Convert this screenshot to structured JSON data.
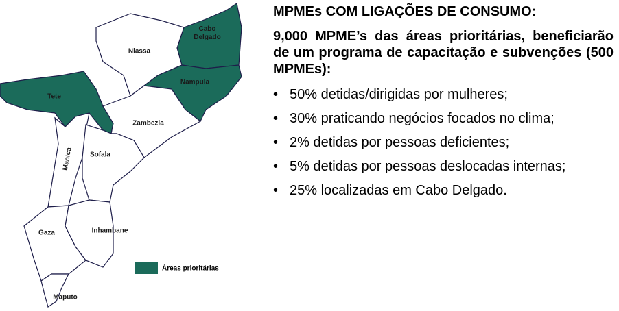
{
  "map": {
    "provinces": [
      {
        "name": "Cabo\nDelgado",
        "color": "#1b6b5a"
      },
      {
        "name": "Niassa",
        "color": "#ffffff"
      },
      {
        "name": "Nampula",
        "color": "#1b6b5a"
      },
      {
        "name": "Tete",
        "color": "#1b6b5a"
      },
      {
        "name": "Zambezia",
        "color": "#ffffff"
      },
      {
        "name": "Manica",
        "color": "#ffffff"
      },
      {
        "name": "Sofala",
        "color": "#ffffff"
      },
      {
        "name": "Gaza",
        "color": "#ffffff"
      },
      {
        "name": "Inhambane",
        "color": "#ffffff"
      },
      {
        "name": "Maputo",
        "color": "#ffffff"
      }
    ],
    "legend": {
      "label": "Áreas prioritárias",
      "color": "#1b6b5a"
    }
  },
  "text": {
    "heading": "MPMEs COM LIGAÇÕES DE CONSUMO:",
    "intro": "9,000 MPME’s das áreas prioritárias, beneficiarão de um programa de capacitação e subvenções (500 MPMEs):",
    "bullets": [
      "50% detidas/dirigidas por mulheres;",
      "30% praticando negócios focados no clima;",
      "2% detidas por pessoas deficientes;",
      "5% detidas por pessoas deslocadas internas;",
      "25% localizadas em Cabo Delgado."
    ]
  }
}
